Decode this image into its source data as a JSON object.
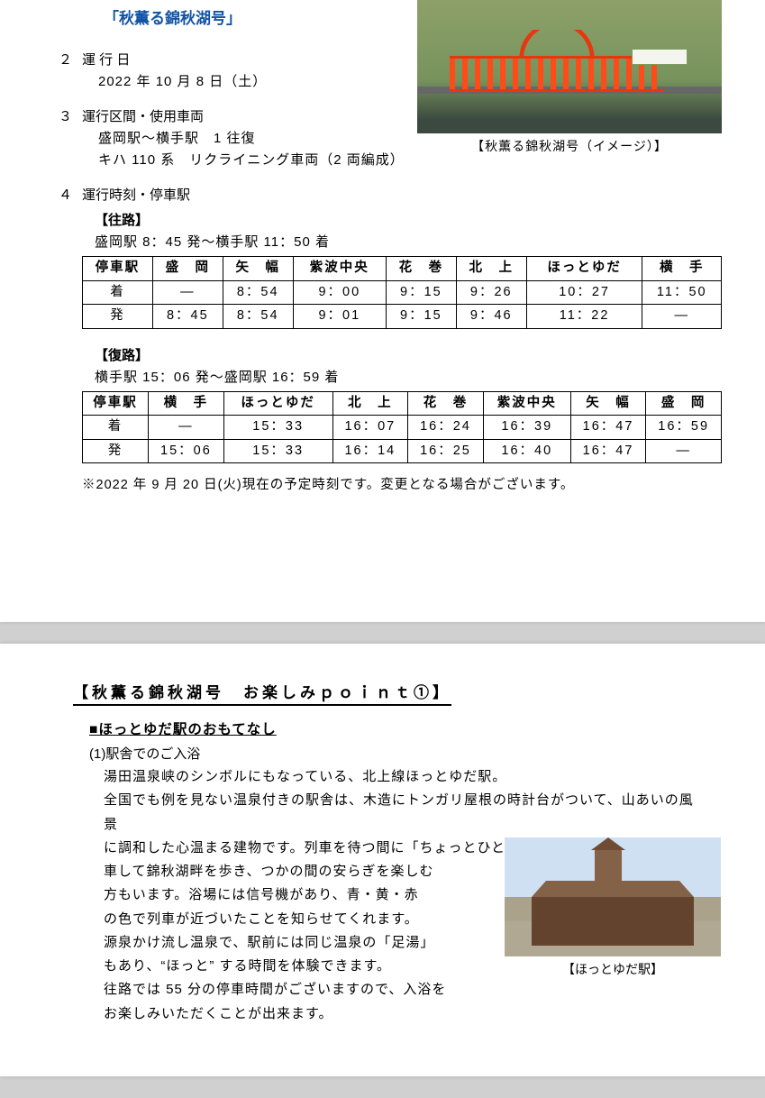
{
  "title_blue": "「秋薫る錦秋湖号」",
  "sec2": {
    "num": "２",
    "head": "運 行 日",
    "line1": "2022 年 10 月 8 日（土）"
  },
  "sec3": {
    "num": "３",
    "head": "運行区間・使用車両",
    "line1": "盛岡駅～横手駅　1 往復",
    "line2": "キハ 110 系　リクライニング車両（2 両編成）"
  },
  "fig1_caption": "【秋薫る錦秋湖号（イメージ）】",
  "sec4": {
    "num": "４",
    "head": "運行時刻・停車駅"
  },
  "outbound": {
    "label": "【往路】",
    "summary": "盛岡駅 8：45 発～横手駅 11：50 着",
    "cols": [
      "停車駅",
      "盛　岡",
      "矢　幅",
      "紫波中央",
      "花　巻",
      "北　上",
      "ほっとゆだ",
      "横　手"
    ],
    "rows": [
      [
        "着",
        "―",
        "8：54",
        "9：00",
        "9：15",
        "9：26",
        "10：27",
        "11：50"
      ],
      [
        "発",
        "8：45",
        "8：54",
        "9：01",
        "9：15",
        "9：46",
        "11：22",
        "―"
      ]
    ]
  },
  "inbound": {
    "label": "【復路】",
    "summary": "横手駅 15：06 発～盛岡駅 16：59 着",
    "cols": [
      "停車駅",
      "横　手",
      "ほっとゆだ",
      "北　上",
      "花　巻",
      "紫波中央",
      "矢　幅",
      "盛　岡"
    ],
    "rows": [
      [
        "着",
        "―",
        "15：33",
        "16：07",
        "16：24",
        "16：39",
        "16：47",
        "16：59"
      ],
      [
        "発",
        "15：06",
        "15：33",
        "16：14",
        "16：25",
        "16：40",
        "16：47",
        "―"
      ]
    ]
  },
  "note": "※2022 年 9 月 20 日(火)現在の予定時刻です。変更となる場合がございます。",
  "page2": {
    "heading": "【秋薫る錦秋湖号　お楽しみｐｏｉｎｔ①】",
    "sub": "■ほっとゆだ駅のおもてなし",
    "p1_num": "(1)駅舎でのご入浴",
    "p1_lines": [
      "湯田温泉峡のシンボルにもなっている、北上線ほっとゆだ駅。",
      "全国でも例を見ない温泉付きの駅舎は、木造にトンガリ屋根の時計台がついて、山あいの風景",
      "に調和した心温まる建物です。列車を待つ間に「ちょっとひとっ風呂♨」という方や、途中下"
    ],
    "p1_lines_narrow": [
      "車して錦秋湖畔を歩き、つかの間の安らぎを楽しむ",
      "方もいます。浴場には信号機があり、青・黄・赤",
      "の色で列車が近づいたことを知らせてくれます。",
      "源泉かけ流し温泉で、駅前には同じ温泉の「足湯」",
      "もあり、“ほっと” する時間を体験できます。",
      "往路では 55 分の停車時間がございますので、入浴を",
      "お楽しみいただくことが出来ます。"
    ],
    "fig2_caption": "【ほっとゆだ駅】"
  },
  "style": {
    "title_color": "#1254a5",
    "cell_border": "#000000",
    "page_bg": "#ffffff",
    "gap_bg": "#d0d0d0"
  }
}
